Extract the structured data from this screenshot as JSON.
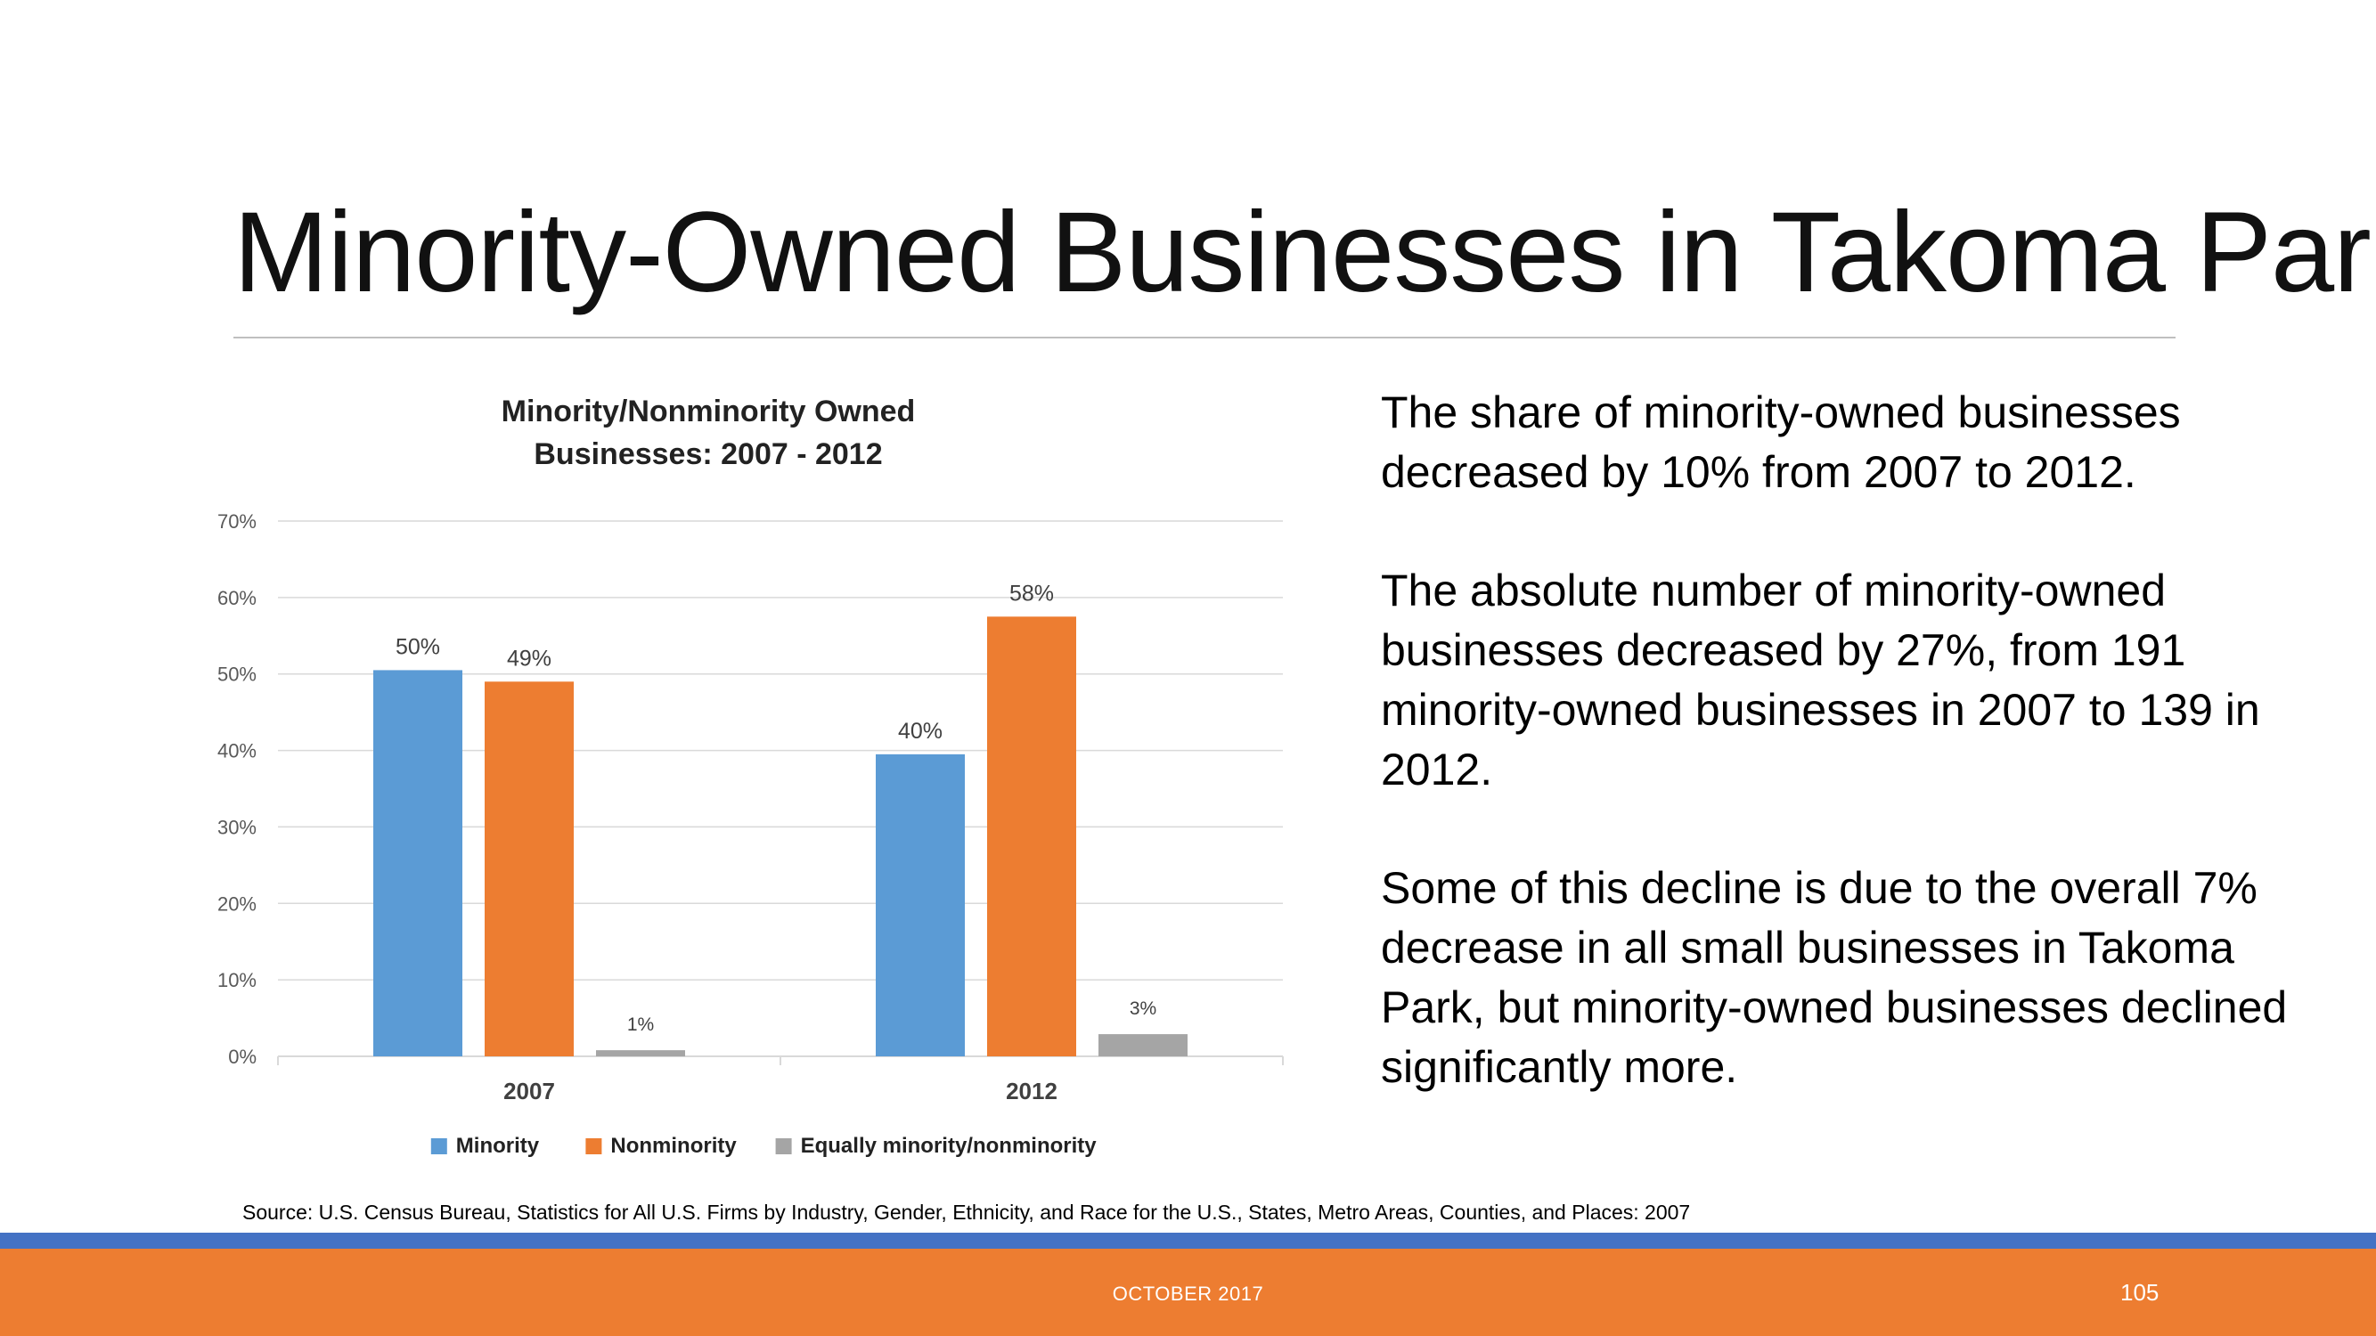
{
  "slide": {
    "title": "Minority-Owned Businesses in Takoma Park",
    "paragraphs": [
      "The share of minority-owned businesses decreased by 10% from 2007 to 2012.",
      "The absolute number of minority-owned businesses decreased by 27%, from 191 minority-owned businesses in 2007 to 139 in 2012.",
      "Some of this decline is due to the overall 7% decrease in all small businesses in Takoma Park, but minority-owned businesses declined significantly more."
    ],
    "source": "Source: U.S. Census Bureau, Statistics for All U.S. Firms by Industry, Gender, Ethnicity, and Race for the U.S., States, Metro Areas, Counties, and Places: 2007",
    "footer": {
      "date": "OCTOBER 2017",
      "page_number": "105"
    },
    "colors": {
      "footer_orange": "#ed7d31",
      "footer_blue": "#4472c4"
    }
  },
  "chart_data": {
    "type": "bar",
    "title": [
      "Minority/Nonminority Owned",
      "Businesses: 2007 - 2012"
    ],
    "categories": [
      "2007",
      "2012"
    ],
    "series": [
      {
        "name": "Minority",
        "values": [
          50.5,
          39.5
        ],
        "labels": [
          "50%",
          "40%"
        ],
        "color": "#5b9bd5"
      },
      {
        "name": "Nonminority",
        "values": [
          49,
          57.5
        ],
        "labels": [
          "49%",
          "58%"
        ],
        "color": "#ed7d31"
      },
      {
        "name": "Equally minority/nonminority",
        "values": [
          0.8,
          2.9
        ],
        "labels": [
          "1%",
          "3%"
        ],
        "color": "#a5a5a5"
      }
    ],
    "ylim": [
      0,
      70
    ],
    "yticks": [
      0,
      10,
      20,
      30,
      40,
      50,
      60,
      70
    ],
    "ytick_labels": [
      "0%",
      "10%",
      "20%",
      "30%",
      "40%",
      "50%",
      "60%",
      "70%"
    ],
    "xlabel": "",
    "ylabel": "",
    "grid": true,
    "legend_position": "bottom"
  }
}
